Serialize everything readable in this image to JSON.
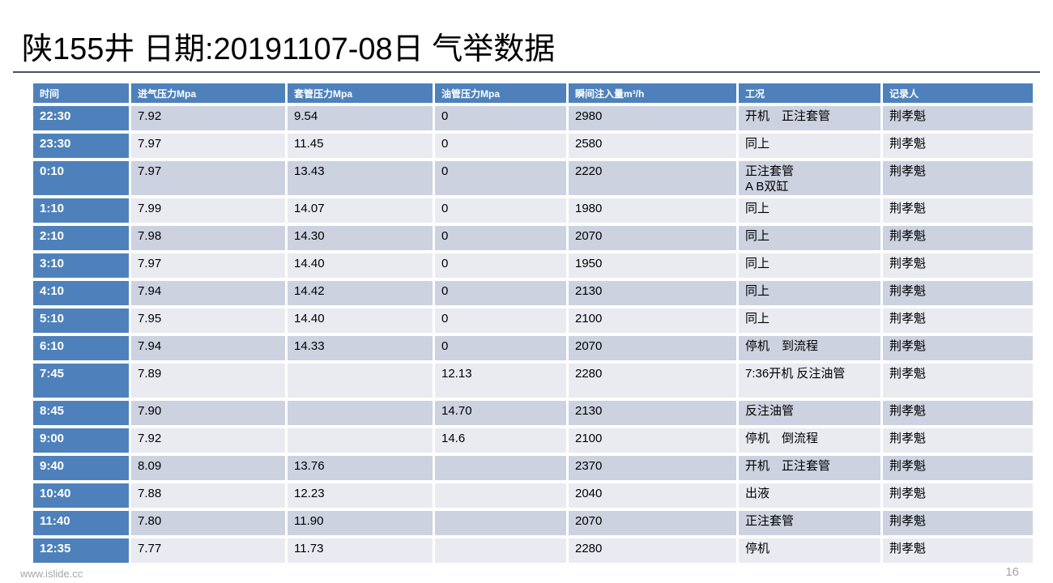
{
  "title": "陕155井 日期:20191107-08日 气举数据",
  "colors": {
    "header_blue": "#4e81bb",
    "band_dark": "#ccd2df",
    "band_light": "#e9eb f1",
    "divider": "#4a5362",
    "footer_gray": "#a6a6a6"
  },
  "table": {
    "columns": [
      "时间",
      "进气压力Mpa",
      "套管压力Mpa",
      "油管压力Mpa",
      "瞬间注入量m³/h",
      "工况",
      "记录人"
    ],
    "column_keys": [
      "time",
      "intake-pressure",
      "casing-pressure",
      "tubing-pressure",
      "injection-rate",
      "condition",
      "recorder"
    ],
    "rows": [
      [
        "22:30",
        "7.92",
        "9.54",
        "0",
        "2980",
        "开机　正注套管",
        "荆孝魁"
      ],
      [
        "23:30",
        "7.97",
        "11.45",
        "0",
        "2580",
        "同上",
        "荆孝魁"
      ],
      [
        "0:10",
        "7.97",
        "13.43",
        "0",
        "2220",
        "正注套管\nA B双缸",
        "荆孝魁"
      ],
      [
        "1:10",
        "7.99",
        "14.07",
        "0",
        "1980",
        "同上",
        "荆孝魁"
      ],
      [
        "2:10",
        "7.98",
        "14.30",
        "0",
        "2070",
        "同上",
        "荆孝魁"
      ],
      [
        "3:10",
        "7.97",
        "14.40",
        "0",
        "1950",
        "同上",
        "荆孝魁"
      ],
      [
        "4:10",
        "7.94",
        "14.42",
        "0",
        "2130",
        "同上",
        "荆孝魁"
      ],
      [
        "5:10",
        "7.95",
        "14.40",
        "0",
        "2100",
        "同上",
        "荆孝魁"
      ],
      [
        "6:10",
        "7.94",
        "14.33",
        "0",
        "2070",
        "停机　到流程",
        "荆孝魁"
      ],
      [
        "7:45",
        "7.89",
        "",
        "12.13",
        "2280",
        "7:36开机 反注油管",
        "荆孝魁"
      ],
      [
        "8:45",
        "7.90",
        "",
        "14.70",
        "2130",
        "反注油管",
        "荆孝魁"
      ],
      [
        "9:00",
        "7.92",
        "",
        "14.6",
        "2100",
        "停机　倒流程",
        "荆孝魁"
      ],
      [
        "9:40",
        "8.09",
        "13.76",
        "",
        "2370",
        "开机　正注套管",
        "荆孝魁"
      ],
      [
        "10:40",
        "7.88",
        "12.23",
        "",
        "2040",
        "出液",
        "荆孝魁"
      ],
      [
        "11:40",
        "7.80",
        "11.90",
        "",
        "2070",
        "正注套管",
        "荆孝魁"
      ],
      [
        "12:35",
        "7.77",
        "11.73",
        "",
        "2280",
        "停机",
        "荆孝魁"
      ]
    ]
  },
  "footer": {
    "website": "www.islide.cc",
    "page_number": "16"
  }
}
